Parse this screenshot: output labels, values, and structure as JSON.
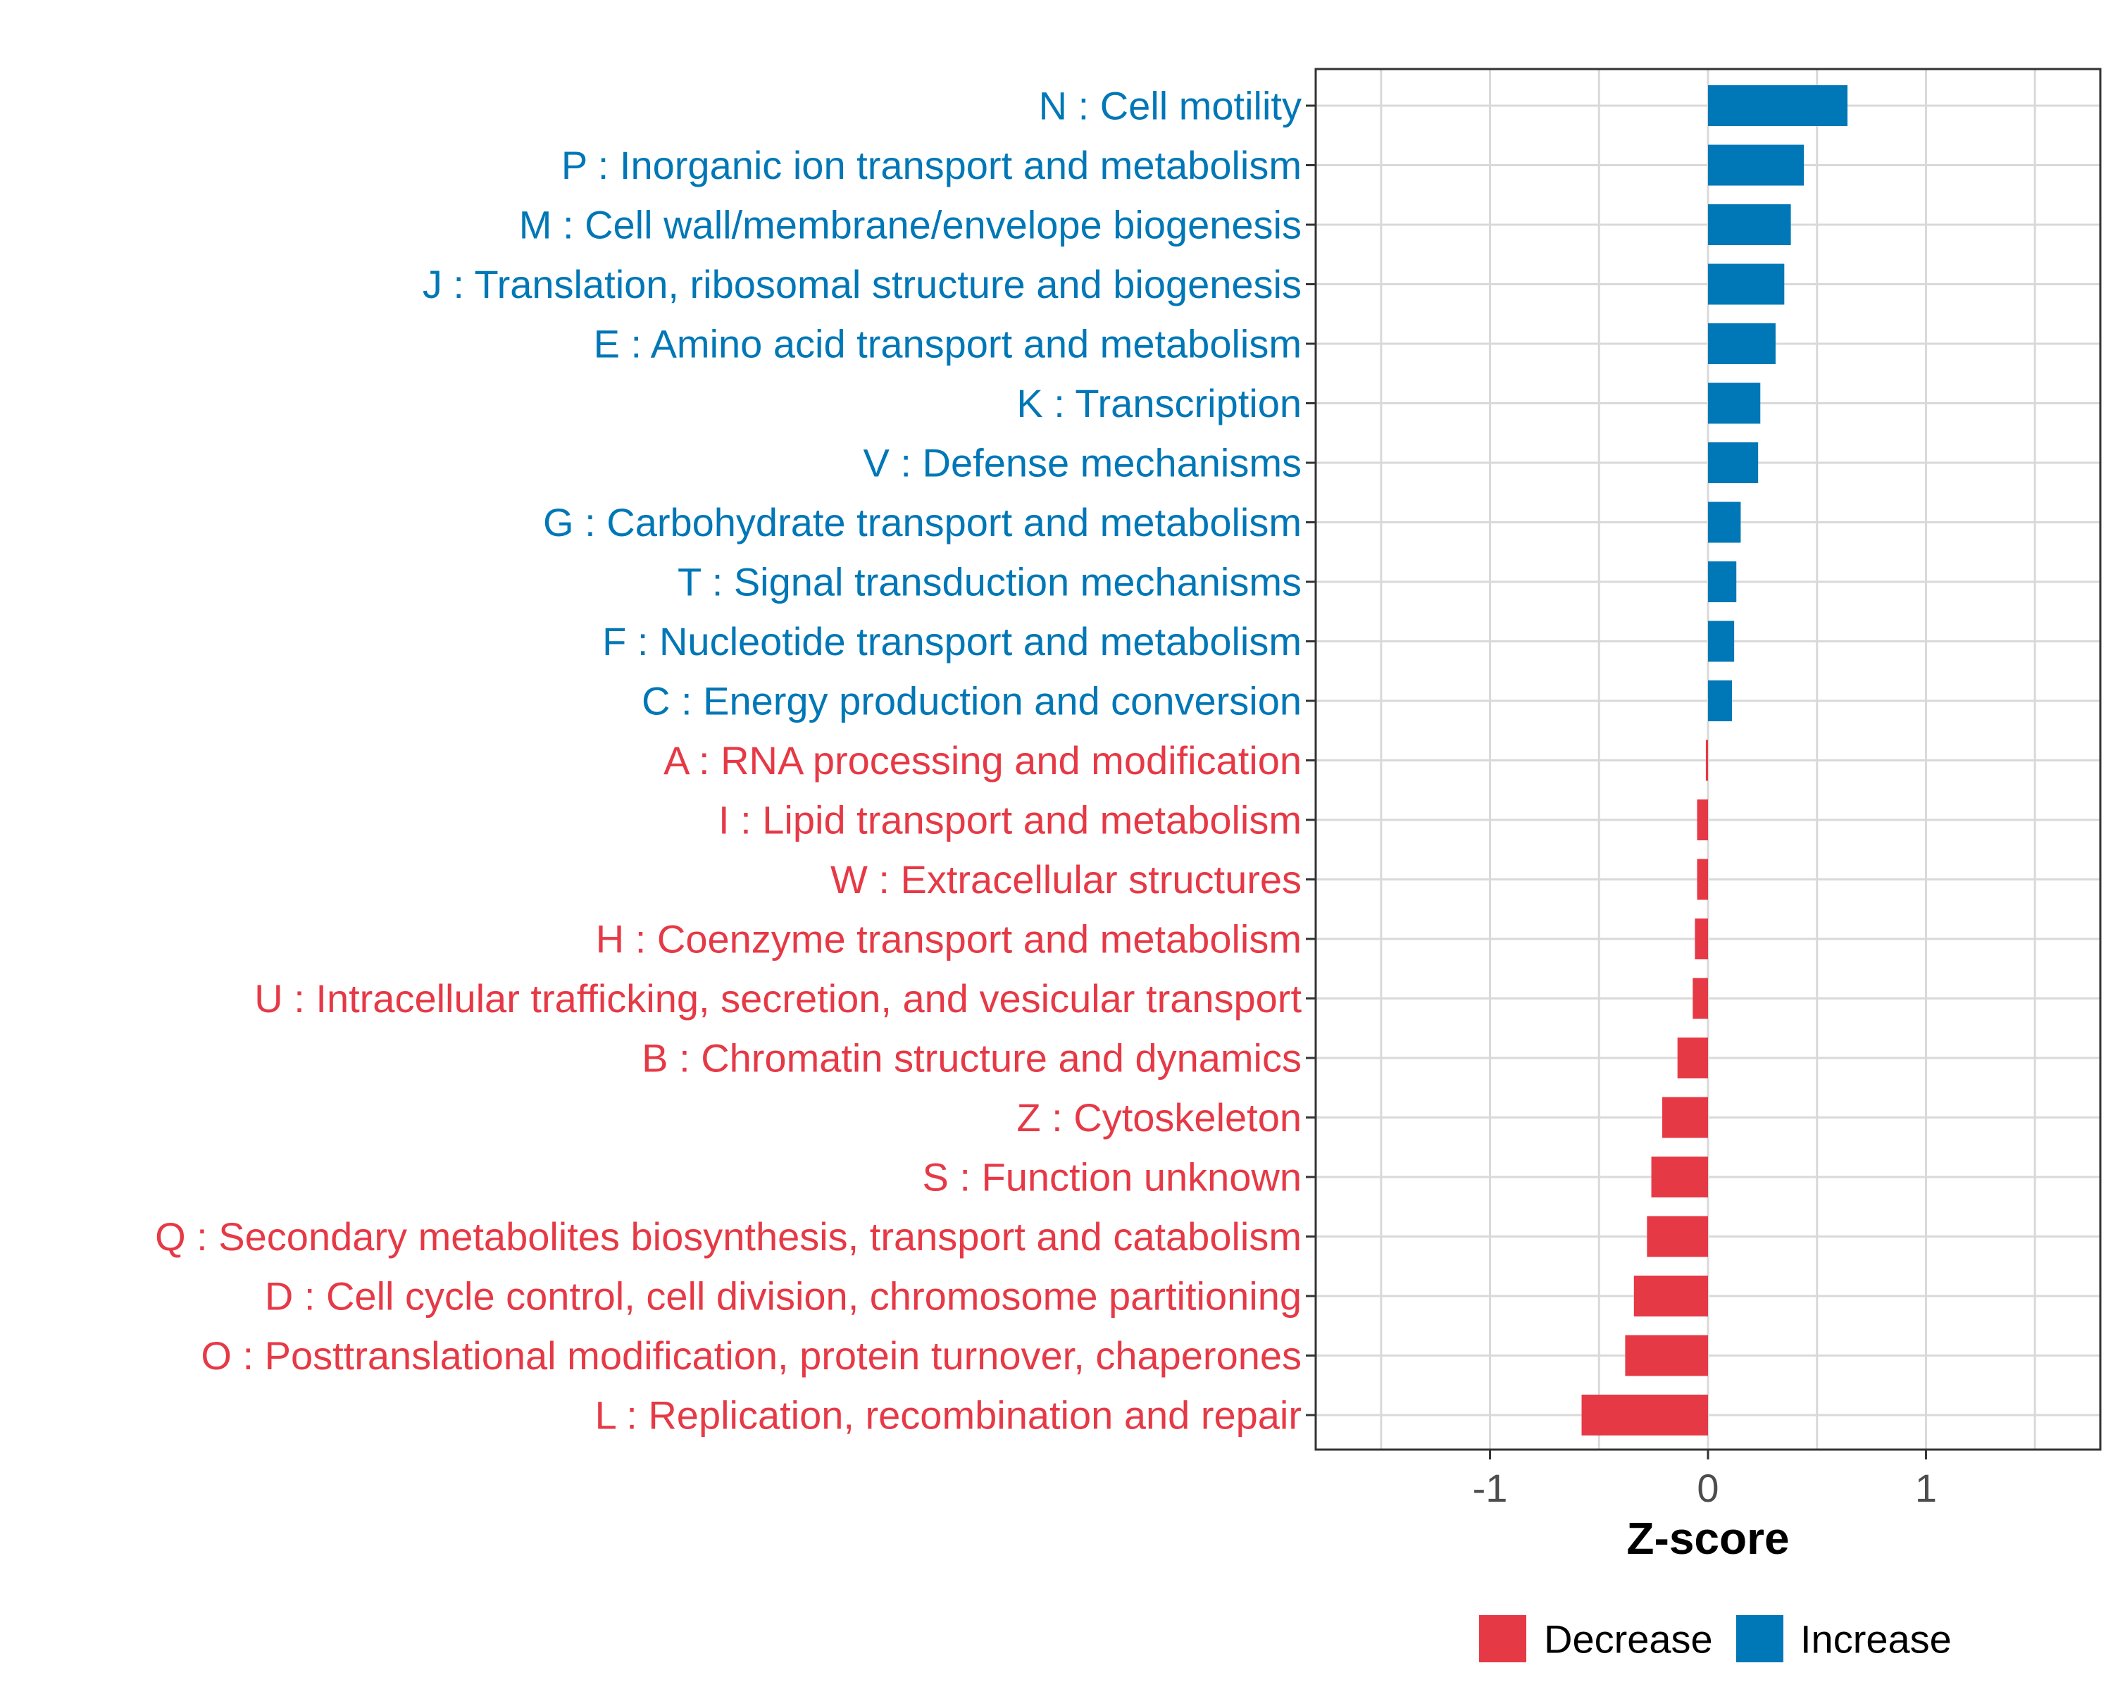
{
  "chart_data": {
    "type": "bar",
    "orientation": "horizontal",
    "title": "",
    "xlabel": "Z-score",
    "ylabel": "",
    "xlim": [
      -1.8,
      1.8
    ],
    "x_ticks": [
      "-1",
      "0",
      "1"
    ],
    "x_tick_values": [
      -1,
      0,
      1
    ],
    "grid": true,
    "legend_position": "bottom",
    "legend": [
      {
        "name": "Decrease",
        "color": "#E63946"
      },
      {
        "name": "Increase",
        "color": "#0077B6"
      }
    ],
    "colors": {
      "increase": "#0077B6",
      "decrease": "#E63946",
      "grid": "#D9D9D9",
      "axis": "#333333",
      "tick_text": "#4D4D4D"
    },
    "categories": [
      "N : Cell motility",
      "P : Inorganic ion transport and metabolism",
      "M : Cell wall/membrane/envelope biogenesis",
      "J : Translation, ribosomal structure and biogenesis",
      "E : Amino acid transport and metabolism",
      "K : Transcription",
      "V : Defense mechanisms",
      "G : Carbohydrate transport and metabolism",
      "T : Signal transduction mechanisms",
      "F : Nucleotide transport and metabolism",
      "C : Energy production and conversion",
      "A : RNA processing and modification",
      "I : Lipid transport and metabolism",
      "W : Extracellular structures",
      "H : Coenzyme transport and metabolism",
      "U : Intracellular trafficking, secretion, and vesicular transport",
      "B : Chromatin structure and dynamics",
      "Z : Cytoskeleton",
      "S : Function unknown",
      "Q : Secondary metabolites biosynthesis, transport and catabolism",
      "D : Cell cycle control, cell division, chromosome partitioning",
      "O : Posttranslational modification, protein turnover, chaperones",
      "L : Replication, recombination and repair"
    ],
    "values": [
      0.64,
      0.44,
      0.38,
      0.35,
      0.31,
      0.24,
      0.23,
      0.15,
      0.13,
      0.12,
      0.11,
      -0.01,
      -0.05,
      -0.05,
      -0.06,
      -0.07,
      -0.14,
      -0.21,
      -0.26,
      -0.28,
      -0.34,
      -0.38,
      -0.58
    ],
    "direction": [
      "Increase",
      "Increase",
      "Increase",
      "Increase",
      "Increase",
      "Increase",
      "Increase",
      "Increase",
      "Increase",
      "Increase",
      "Increase",
      "Decrease",
      "Decrease",
      "Decrease",
      "Decrease",
      "Decrease",
      "Decrease",
      "Decrease",
      "Decrease",
      "Decrease",
      "Decrease",
      "Decrease",
      "Decrease"
    ]
  }
}
